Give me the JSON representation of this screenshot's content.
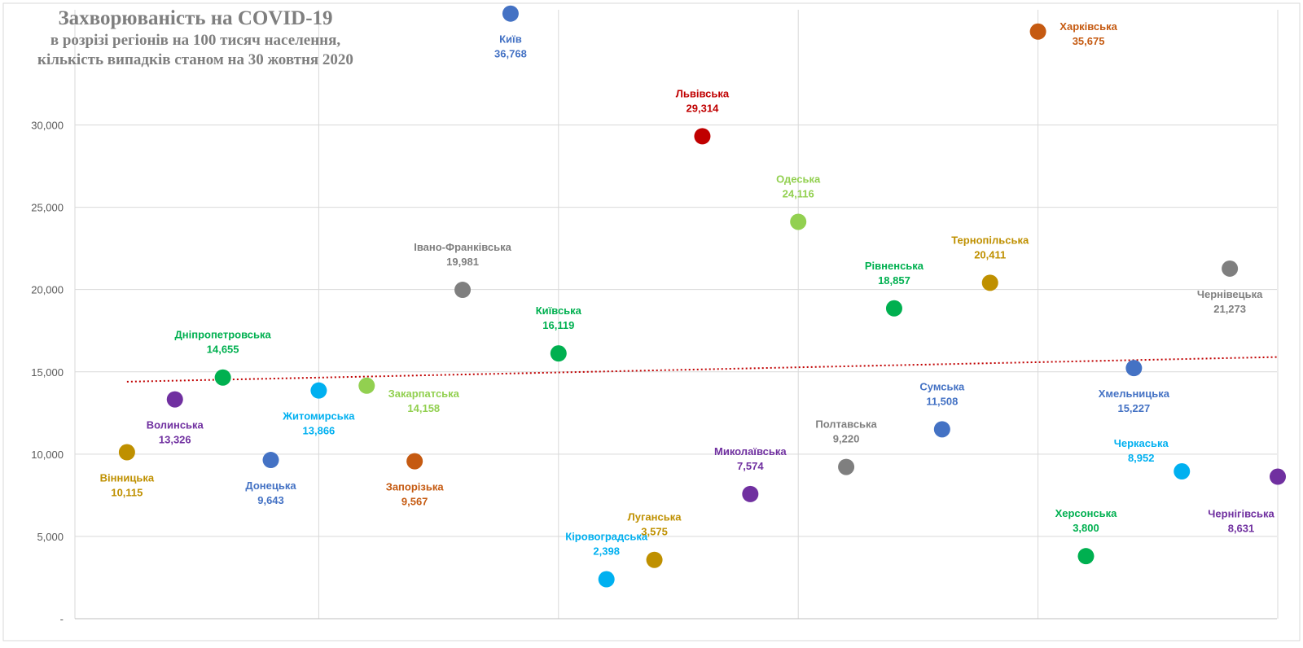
{
  "chart_data": {
    "type": "scatter",
    "title": "Захворюваність на COVID-19",
    "subtitle_lines": [
      "в розрізі регіонів на 100 тисяч населення,",
      "кількість випадків станом на 30 жовтня 2020"
    ],
    "xlabel": "",
    "ylabel": "",
    "ylim": [
      0,
      37000
    ],
    "y_ticks": [
      {
        "value": 0,
        "label": "-"
      },
      {
        "value": 5000,
        "label": "5,000"
      },
      {
        "value": 10000,
        "label": "10,000"
      },
      {
        "value": 15000,
        "label": "15,000"
      },
      {
        "value": 20000,
        "label": "20,000"
      },
      {
        "value": 25000,
        "label": "25,000"
      },
      {
        "value": 30000,
        "label": "30,000"
      }
    ],
    "xlim": [
      0,
      25
    ],
    "x_gridlines": [
      0,
      5,
      10,
      15,
      20,
      25
    ],
    "grid": true,
    "trendline": {
      "type": "linear",
      "color": "#c00000",
      "y_start": 14400,
      "y_end": 15900
    },
    "points": [
      {
        "x": 1,
        "y": 10115,
        "name": "Вінницька",
        "value_label": "10,115",
        "color": "#bf9000",
        "label_pos": "below"
      },
      {
        "x": 2,
        "y": 13326,
        "name": "Волинська",
        "value_label": "13,326",
        "color": "#7030a0",
        "label_pos": "below"
      },
      {
        "x": 3,
        "y": 14655,
        "name": "Дніпропетровська",
        "value_label": "14,655",
        "color": "#00b050",
        "label_pos": "above"
      },
      {
        "x": 4,
        "y": 9643,
        "name": "Донецька",
        "value_label": "9,643",
        "color": "#4472c4",
        "label_pos": "below"
      },
      {
        "x": 5,
        "y": 13866,
        "name": "Житомирська",
        "value_label": "13,866",
        "color": "#00b0f0",
        "label_pos": "below"
      },
      {
        "x": 6,
        "y": 14158,
        "name": "Закарпатська",
        "value_label": "14,158",
        "color": "#92d050",
        "label_pos": "below-right"
      },
      {
        "x": 7,
        "y": 9567,
        "name": "Запорізька",
        "value_label": "9,567",
        "color": "#c55a11",
        "label_pos": "below"
      },
      {
        "x": 8,
        "y": 19981,
        "name": "Івано-Франківська",
        "value_label": "19,981",
        "color": "#7f7f7f",
        "label_pos": "above"
      },
      {
        "x": 9,
        "y": 36768,
        "name": "Київ",
        "value_label": "36,768",
        "color": "#4472c4",
        "label_pos": "below"
      },
      {
        "x": 10,
        "y": 16119,
        "name": "Київська",
        "value_label": "16,119",
        "color": "#00b050",
        "label_pos": "above"
      },
      {
        "x": 11,
        "y": 2398,
        "name": "Кіровоградська",
        "value_label": "2,398",
        "color": "#00b0f0",
        "label_pos": "above"
      },
      {
        "x": 12,
        "y": 3575,
        "name": "Луганська",
        "value_label": "3,575",
        "color": "#bf9000",
        "label_pos": "above"
      },
      {
        "x": 13,
        "y": 29314,
        "name": "Львівська",
        "value_label": "29,314",
        "color": "#c00000",
        "label_pos": "above"
      },
      {
        "x": 14,
        "y": 7574,
        "name": "Миколаївська",
        "value_label": "7,574",
        "color": "#7030a0",
        "label_pos": "above"
      },
      {
        "x": 15,
        "y": 24116,
        "name": "Одеська",
        "value_label": "24,116",
        "color": "#92d050",
        "label_pos": "above"
      },
      {
        "x": 16,
        "y": 9220,
        "name": "Полтавська",
        "value_label": "9,220",
        "color": "#7f7f7f",
        "label_pos": "above"
      },
      {
        "x": 17,
        "y": 18857,
        "name": "Рівненська",
        "value_label": "18,857",
        "color": "#00b050",
        "label_pos": "above"
      },
      {
        "x": 18,
        "y": 11508,
        "name": "Сумська",
        "value_label": "11,508",
        "color": "#4472c4",
        "label_pos": "above"
      },
      {
        "x": 19,
        "y": 20411,
        "name": "Тернопільська",
        "value_label": "20,411",
        "color": "#bf9000",
        "label_pos": "above"
      },
      {
        "x": 20,
        "y": 35675,
        "name": "Харківська",
        "value_label": "35,675",
        "color": "#c55a11",
        "label_pos": "right"
      },
      {
        "x": 21,
        "y": 3800,
        "name": "Херсонська",
        "value_label": "3,800",
        "color": "#00b050",
        "label_pos": "above"
      },
      {
        "x": 22,
        "y": 15227,
        "name": "Хмельницька",
        "value_label": "15,227",
        "color": "#4472c4",
        "label_pos": "below"
      },
      {
        "x": 23,
        "y": 8952,
        "name": "Черкаська",
        "value_label": "8,952",
        "color": "#00b0f0",
        "label_pos": "above-left"
      },
      {
        "x": 24,
        "y": 21273,
        "name": "Чернівецька",
        "value_label": "21,273",
        "color": "#7f7f7f",
        "label_pos": "below"
      },
      {
        "x": 25,
        "y": 8631,
        "name": "Чернігівська",
        "value_label": "8,631",
        "color": "#7030a0",
        "label_pos": "below-left"
      }
    ]
  }
}
